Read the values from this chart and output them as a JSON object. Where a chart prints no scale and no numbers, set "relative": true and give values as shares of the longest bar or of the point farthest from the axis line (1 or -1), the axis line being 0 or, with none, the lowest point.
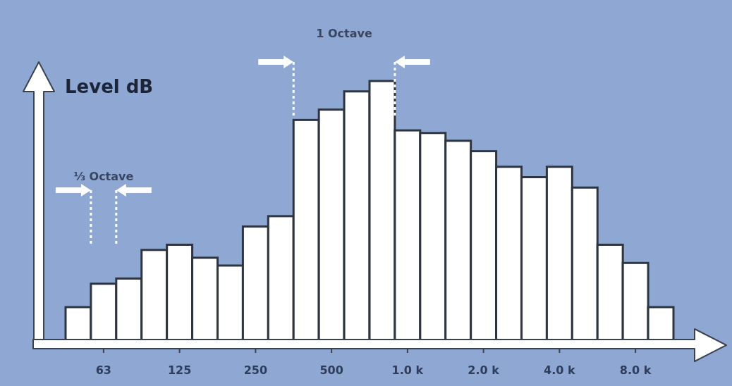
{
  "chart_data": {
    "type": "bar",
    "ylabel": "Level dB",
    "annotations": [
      "1 Octave",
      "⅓ Octave"
    ],
    "categories": [
      null,
      "63",
      null,
      null,
      "125",
      null,
      null,
      "250",
      null,
      null,
      "500",
      null,
      null,
      "1.0 k",
      null,
      null,
      "2.0 k",
      null,
      null,
      "4.0 k",
      null,
      null,
      "8.0 k",
      null
    ],
    "values": [
      0.13,
      0.22,
      0.24,
      0.35,
      0.37,
      0.32,
      0.29,
      0.44,
      0.48,
      0.85,
      0.89,
      0.96,
      1,
      0.81,
      0.8,
      0.77,
      0.73,
      0.67,
      0.63,
      0.67,
      0.59,
      0.37,
      0.3,
      0.13
    ],
    "color": "#ffffff",
    "relative": true
  }
}
